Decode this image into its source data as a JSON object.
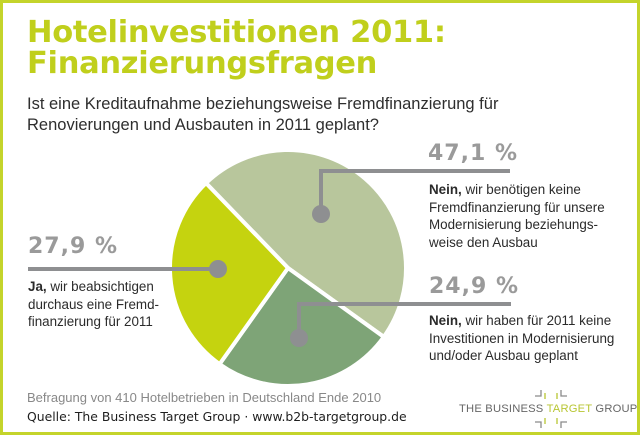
{
  "header": {
    "title_lines": [
      "Hotelinvestitionen 2011:",
      "Finanzierungsfragen"
    ],
    "question_lines": [
      "Ist eine Kreditaufnahme beziehungsweise Fremdfinanzierung für",
      "Renovierungen und Ausbauten in 2011 geplant?"
    ]
  },
  "chart_data": {
    "type": "pie",
    "title": "Hotelinvestitionen 2011: Finanzierungsfragen",
    "subtitle": "Ist eine Kreditaufnahme beziehungsweise Fremdfinanzierung für Renovierungen und Ausbauten in 2011 geplant?",
    "unit": "%",
    "slices": [
      {
        "name": "Nein, keine Fremdfinanzierung",
        "value": 47.1,
        "value_label": "47,1 %",
        "label_bold": "Nein,",
        "label_lines": [
          "wir benötigen keine",
          "Fremdfinanzierung für unsere",
          "Modernisierung beziehungs-",
          "weise den Ausbau"
        ],
        "color": "#b8c69c"
      },
      {
        "name": "Nein, keine Investitionen",
        "value": 24.9,
        "value_label": "24,9 %",
        "label_bold": "Nein,",
        "label_lines": [
          "wir haben für 2011 keine",
          "Investitionen in Modernisierung",
          "und/oder Ausbau geplant"
        ],
        "color": "#7ea477"
      },
      {
        "name": "Ja, Fremdfinanzierung",
        "value": 27.9,
        "value_label": "27,9 %",
        "label_bold": "Ja,",
        "label_lines": [
          "wir beabsichtigen",
          "durchaus eine Fremd-",
          "finanzierung für 2011"
        ],
        "color": "#c5d30f"
      }
    ],
    "start_direction": "upper-left",
    "direction": "clockwise",
    "legend": "none (callout labels)"
  },
  "footer": {
    "survey": "Befragung von 410 Hotelbetrieben in Deutschland Ende 2010",
    "source": "Quelle: The Business Target Group · www.b2b-targetgroup.de"
  },
  "logo": {
    "text_before": "THE BUSINESS ",
    "text_accent": "TARGET",
    "text_after": " GROUP",
    "accent_color": "#b8c633"
  },
  "colors": {
    "border": "#c4d42b",
    "title": "#c0cf1c",
    "leader": "#8e8f91",
    "percent": "#9a9a9a"
  }
}
